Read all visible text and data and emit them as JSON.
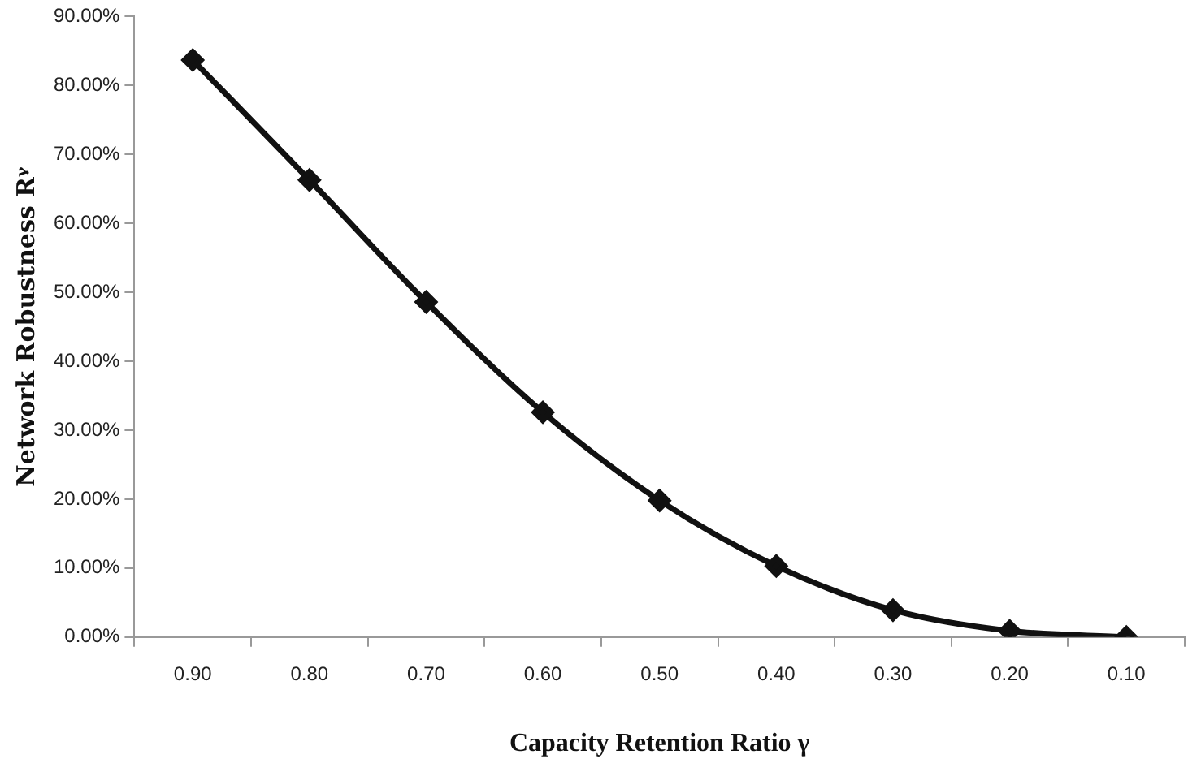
{
  "chart_data": {
    "type": "line",
    "xlabel": "Capacity Retention Ratio γ",
    "ylabel": "Network Robustness Rᵞ",
    "categories": [
      "0.90",
      "0.80",
      "0.70",
      "0.60",
      "0.50",
      "0.40",
      "0.30",
      "0.20",
      "0.10"
    ],
    "series": [
      {
        "color": "#111111",
        "values": [
          83.7,
          66.3,
          48.6,
          32.6,
          19.8,
          10.3,
          3.9,
          0.9,
          0
        ]
      }
    ],
    "ylim": [
      0,
      90
    ],
    "yticks": [
      {
        "value": 0,
        "label": "0.00%"
      },
      {
        "value": 10,
        "label": "10.00%"
      },
      {
        "value": 20,
        "label": "20.00%"
      },
      {
        "value": 30,
        "label": "30.00%"
      },
      {
        "value": 40,
        "label": "40.00%"
      },
      {
        "value": 50,
        "label": "50.00%"
      },
      {
        "value": 60,
        "label": "60.00%"
      },
      {
        "value": 70,
        "label": "70.00%"
      },
      {
        "value": 80,
        "label": "80.00%"
      },
      {
        "value": 90,
        "label": "90.00%"
      }
    ],
    "grid": false,
    "legend": false,
    "marker": "diamond",
    "line_style": "solid"
  }
}
